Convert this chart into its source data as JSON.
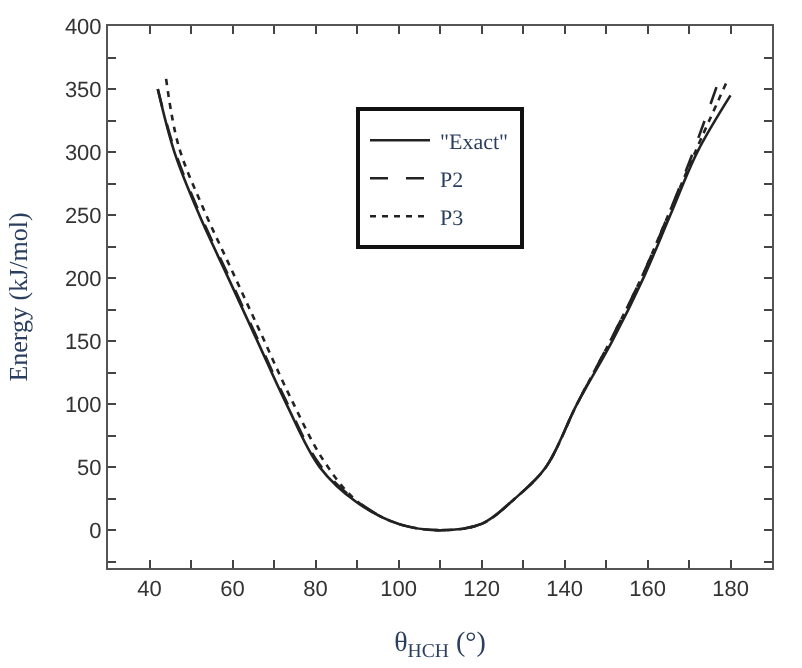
{
  "chart_data": {
    "type": "line",
    "xlabel": "θ$_{HCH}$ (°)",
    "ylabel": "Energy (kJ/mol)",
    "xlim": [
      30,
      190
    ],
    "ylim": [
      -30,
      400
    ],
    "xticks": [
      {
        "value": 30,
        "label": null
      },
      40,
      {
        "value": 50,
        "label": null
      },
      60,
      {
        "value": 70,
        "label": null
      },
      80,
      {
        "value": 90,
        "label": null
      },
      100,
      {
        "value": 110,
        "label": null
      },
      120,
      {
        "value": 130,
        "label": null
      },
      140,
      {
        "value": 150,
        "label": null
      },
      160,
      {
        "value": 170,
        "label": null
      },
      180,
      {
        "value": 190,
        "label": null
      }
    ],
    "yticks": [
      {
        "value": -25,
        "label": null
      },
      0,
      {
        "value": 25,
        "label": null
      },
      50,
      {
        "value": 75,
        "label": null
      },
      100,
      {
        "value": 125,
        "label": null
      },
      150,
      {
        "value": 175,
        "label": null
      },
      200,
      {
        "value": 225,
        "label": null
      },
      250,
      {
        "value": 275,
        "label": null
      },
      300,
      {
        "value": 325,
        "label": null
      },
      350,
      {
        "value": 375,
        "label": null
      },
      400
    ],
    "legend": "top",
    "marker": "none",
    "series": [
      {
        "name": "\"Exact\"",
        "color": "#222222",
        "line_style": "solid",
        "x": [
          42,
          46,
          52,
          59,
          66,
          73,
          81,
          90,
          100,
          110,
          120,
          128,
          135.5,
          143,
          151.5,
          159,
          165.5,
          172,
          180
        ],
        "values": [
          350,
          300,
          250,
          200,
          150,
          100,
          50,
          22,
          5,
          0,
          5,
          25,
          50,
          100,
          150,
          200,
          250,
          300,
          345
        ]
      },
      {
        "name": "P2",
        "color": "#222222",
        "line_style": "dashed",
        "x": [
          42,
          46,
          52,
          59,
          66,
          73,
          81,
          90,
          100,
          110,
          120,
          128,
          135.5,
          143,
          151,
          158.5,
          165,
          171,
          177
        ],
        "values": [
          350,
          302,
          252,
          202,
          152,
          102,
          52,
          23,
          5,
          0,
          5,
          25,
          50,
          100,
          150,
          200,
          250,
          300,
          355
        ]
      },
      {
        "name": "P3",
        "color": "#222222",
        "line_style": "dotted",
        "x": [
          44,
          47,
          53,
          60,
          67,
          74,
          82,
          90,
          100,
          110,
          120,
          128,
          135.5,
          143,
          151,
          158.5,
          165,
          171.5,
          179
        ],
        "values": [
          358,
          305,
          255,
          205,
          155,
          105,
          55,
          23,
          5,
          0,
          5,
          25,
          50,
          100,
          150,
          200,
          250,
          300,
          355
        ]
      }
    ]
  }
}
